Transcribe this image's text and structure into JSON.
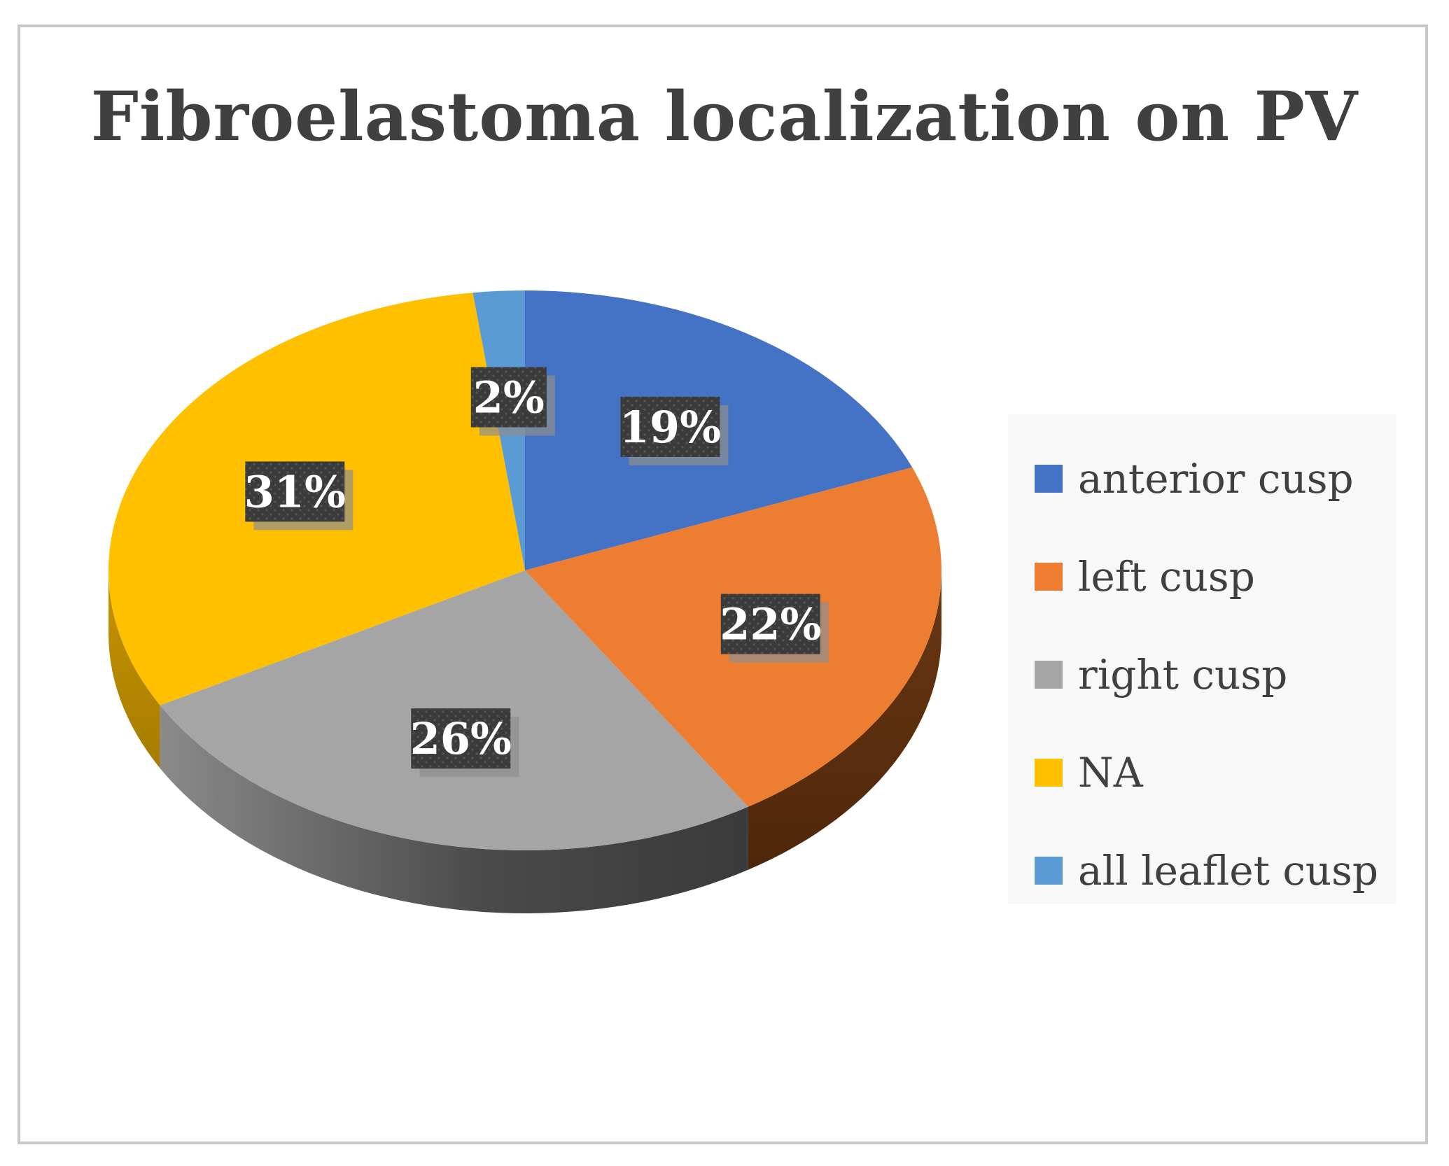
{
  "chart_data": {
    "type": "pie",
    "title": "Fibroelastoma localization on PV",
    "categories": [
      "anterior cusp",
      "left cusp",
      "right cusp",
      "NA",
      "all leaflet cusp"
    ],
    "values": [
      19,
      22,
      26,
      31,
      2
    ],
    "labels": [
      "19%",
      "22%",
      "26%",
      "31%",
      "2%"
    ],
    "unit": "%",
    "colors": [
      "#4472C4",
      "#ED7D31",
      "#A5A5A5",
      "#FFC000",
      "#5B9BD5"
    ],
    "legend_position": "right",
    "style": "3d"
  }
}
